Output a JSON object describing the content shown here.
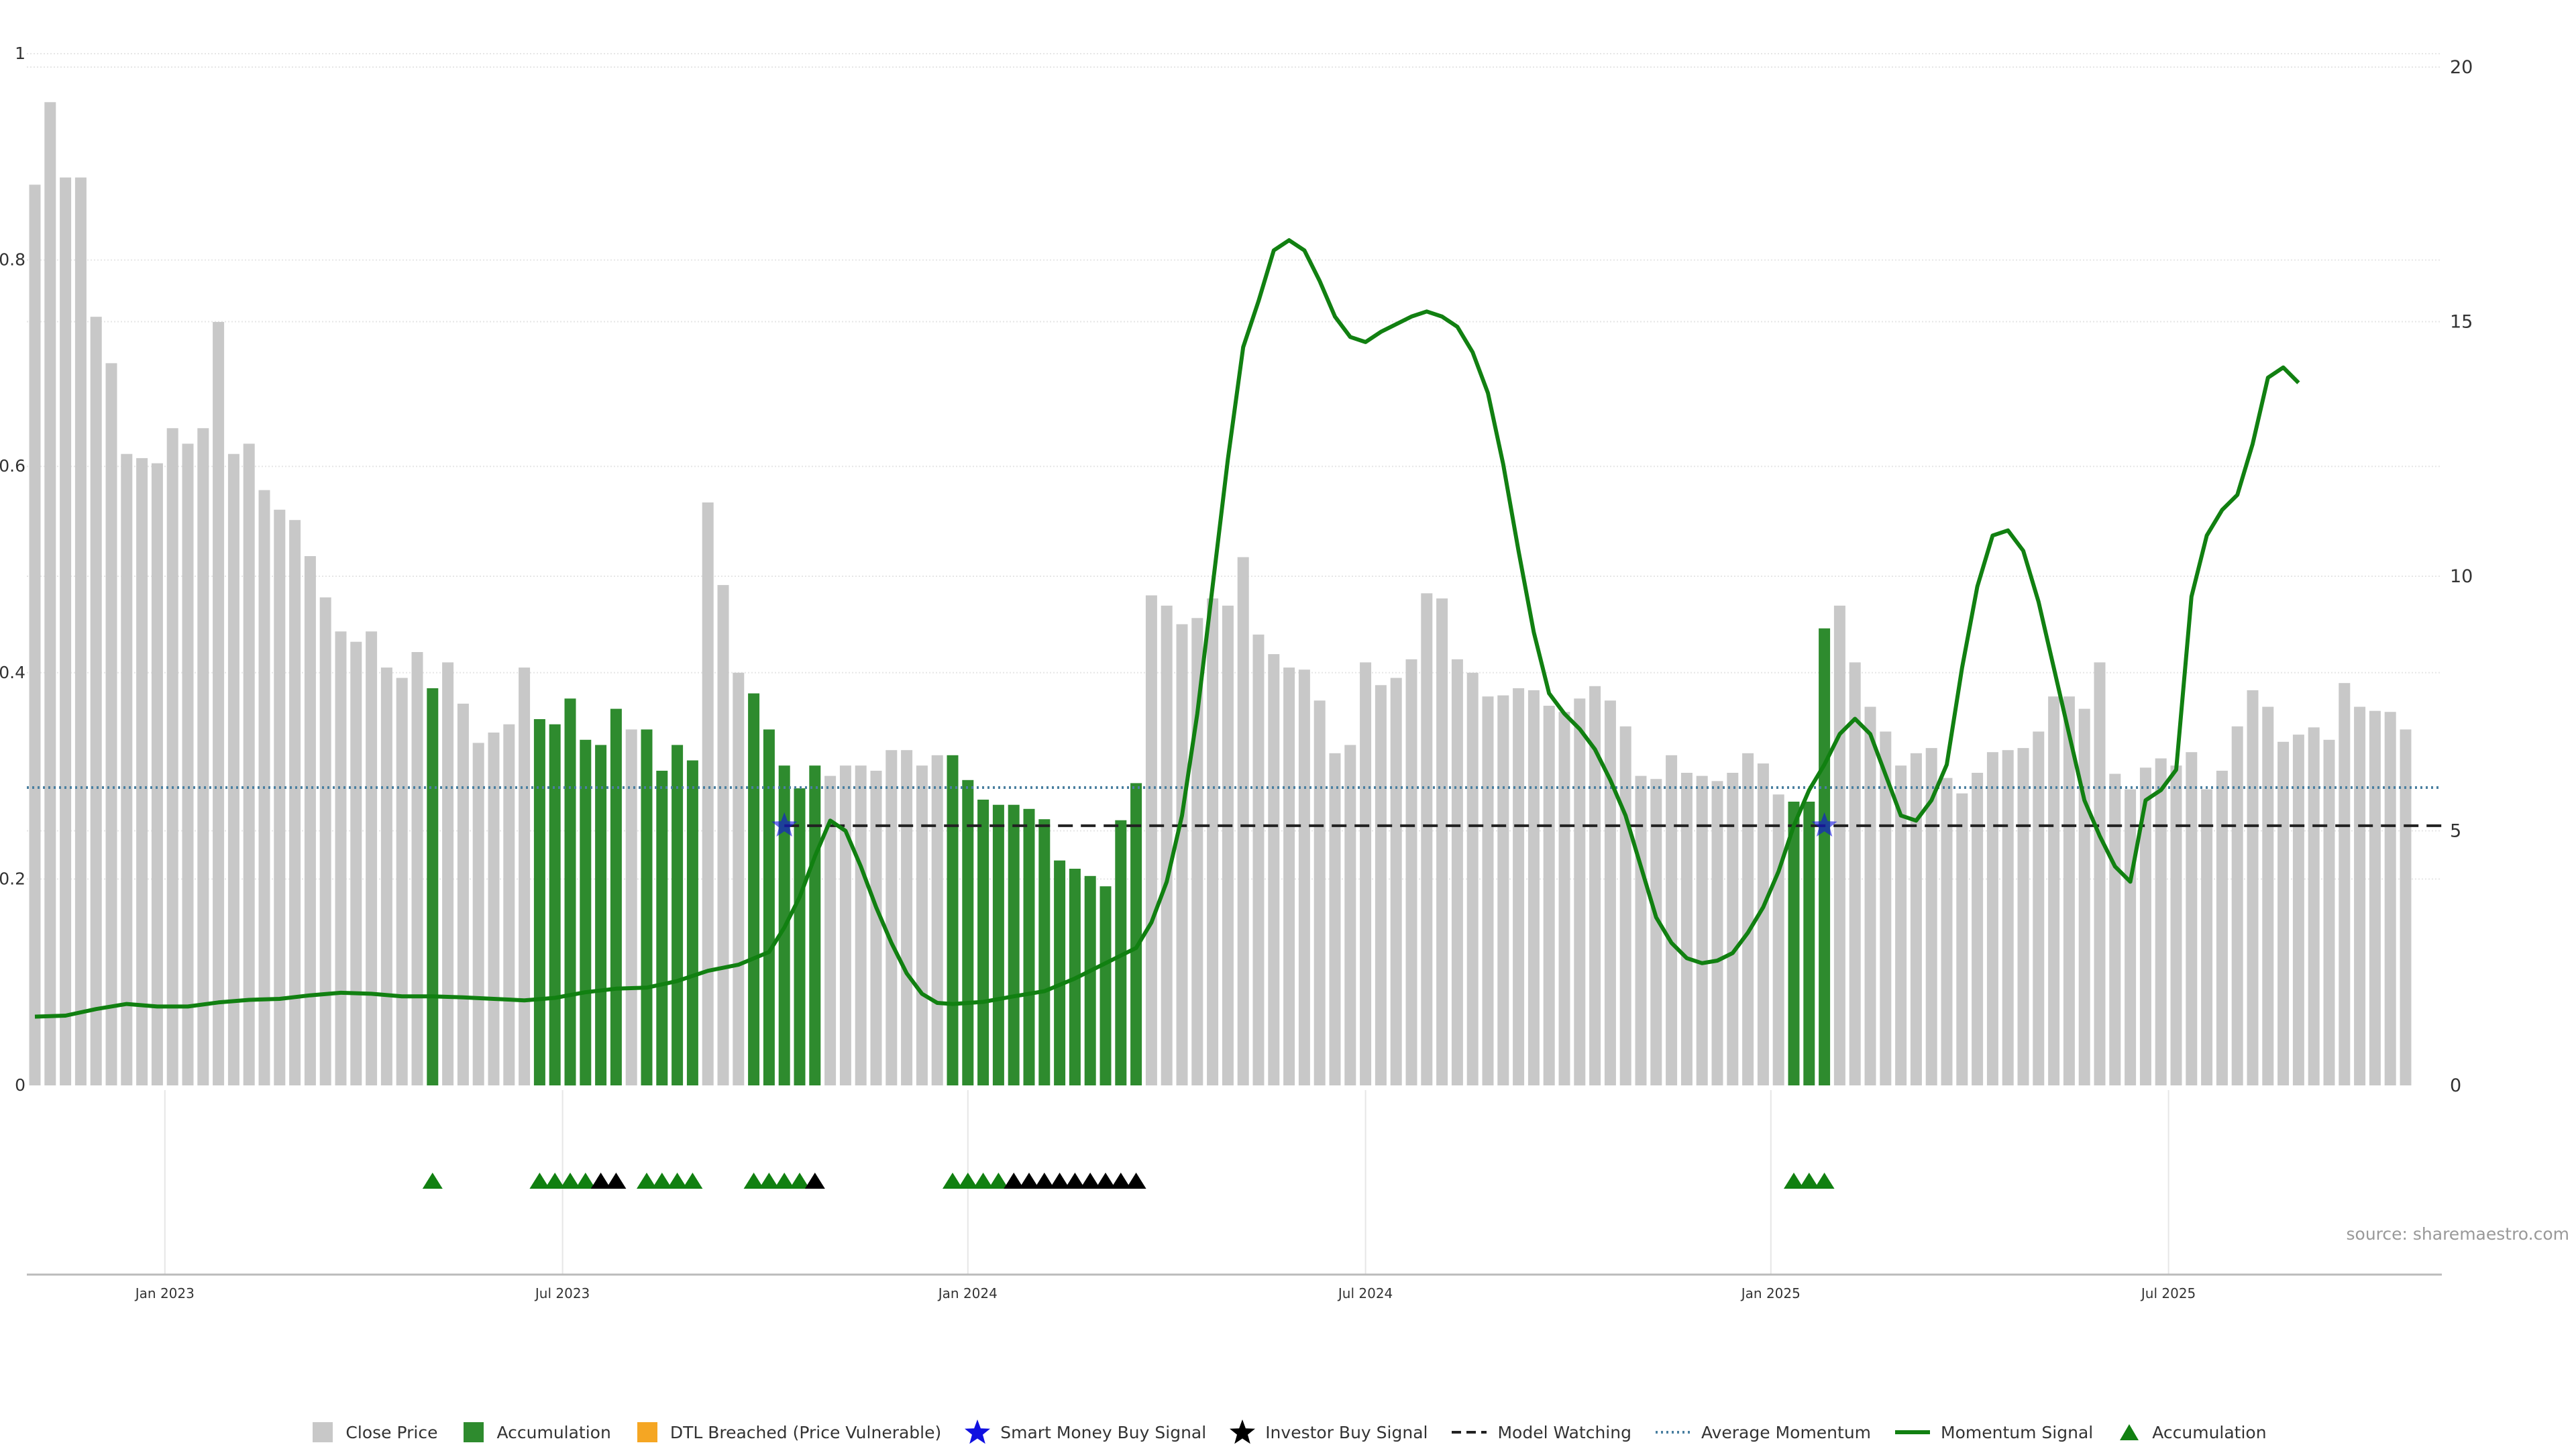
{
  "colors": {
    "close_price": "#c8c8c8",
    "accumulation": "#2e8b2e",
    "dtl_breached": "#f5a623",
    "smart_money": "#1010e0",
    "investor": "#000000",
    "model_watching": "#222222",
    "avg_momentum": "#4a7fa0",
    "momentum": "#118011",
    "accum_marker": "#118011",
    "grid": "#e6e6e6"
  },
  "chart_data": {
    "type": "bar",
    "source": "source: sharemaestro.com",
    "x_ticks": [
      {
        "label": "Jan 2023",
        "index": 8.5
      },
      {
        "label": "Jul 2023",
        "index": 34.5
      },
      {
        "label": "Jan 2024",
        "index": 61
      },
      {
        "label": "Jul 2024",
        "index": 87
      },
      {
        "label": "Jan 2025",
        "index": 113.5
      },
      {
        "label": "Jul 2025",
        "index": 139.5
      }
    ],
    "y_left": {
      "range": [
        0,
        1
      ],
      "ticks": [
        {
          "v": 0,
          "label": "0"
        },
        {
          "v": 0.2,
          "label": "0.2"
        },
        {
          "v": 0.4,
          "label": "0.4"
        },
        {
          "v": 0.6,
          "label": "0.6"
        },
        {
          "v": 0.8,
          "label": "0.8"
        },
        {
          "v": 1,
          "label": "1"
        }
      ]
    },
    "y_right": {
      "range": [
        0,
        20
      ],
      "ticks": [
        {
          "v": 0,
          "label": "0"
        },
        {
          "v": 5,
          "label": "5"
        },
        {
          "v": 10,
          "label": "10"
        },
        {
          "v": 15,
          "label": "15"
        },
        {
          "v": 20,
          "label": "20"
        }
      ]
    },
    "close_price": [
      0.873,
      0.953,
      0.88,
      0.88,
      0.745,
      0.7,
      0.612,
      0.608,
      0.603,
      0.637,
      0.622,
      0.637,
      0.74,
      0.612,
      0.622,
      0.577,
      0.558,
      0.548,
      0.513,
      0.473,
      0.44,
      0.43,
      0.44,
      0.405,
      0.395,
      0.42,
      0.385,
      0.41,
      0.37,
      0.332,
      0.342,
      0.35,
      0.405,
      0.355,
      0.35,
      0.375,
      0.335,
      0.33,
      0.365,
      0.345,
      0.345,
      0.305,
      0.33,
      0.315,
      0.565,
      0.485,
      0.4,
      0.38,
      0.345,
      0.31,
      0.288,
      0.31,
      0.3,
      0.31,
      0.31,
      0.305,
      0.325,
      0.325,
      0.31,
      0.32,
      0.32,
      0.296,
      0.277,
      0.272,
      0.272,
      0.268,
      0.258,
      0.218,
      0.21,
      0.203,
      0.193,
      0.257,
      0.293,
      0.475,
      0.465,
      0.447,
      0.453,
      0.472,
      0.465,
      0.512,
      0.437,
      0.418,
      0.405,
      0.403,
      0.373,
      0.322,
      0.33,
      0.41,
      0.388,
      0.395,
      0.413,
      0.477,
      0.472,
      0.413,
      0.4,
      0.377,
      0.378,
      0.385,
      0.383,
      0.368,
      0.362,
      0.375,
      0.387,
      0.373,
      0.348,
      0.3,
      0.297,
      0.32,
      0.303,
      0.3,
      0.295,
      0.303,
      0.322,
      0.312,
      0.282,
      0.275,
      0.275,
      0.443,
      0.465,
      0.41,
      0.367,
      0.343,
      0.31,
      0.322,
      0.327,
      0.298,
      0.283,
      0.303,
      0.323,
      0.325,
      0.327,
      0.343,
      0.377,
      0.377,
      0.365,
      0.41,
      0.302,
      0.287,
      0.308,
      0.317,
      0.31,
      0.323,
      0.287,
      0.305,
      0.348,
      0.383,
      0.367,
      0.333,
      0.34,
      0.347,
      0.335,
      0.39,
      0.367,
      0.363,
      0.362,
      0.345
    ],
    "accumulation_ranges": [
      [
        26,
        26
      ],
      [
        33,
        38
      ],
      [
        40,
        43
      ],
      [
        47,
        51
      ],
      [
        60,
        72
      ],
      [
        115,
        117
      ]
    ],
    "momentum_signal": [
      [
        0,
        1.35
      ],
      [
        2,
        1.37
      ],
      [
        4,
        1.5
      ],
      [
        6,
        1.6
      ],
      [
        8,
        1.55
      ],
      [
        10,
        1.55
      ],
      [
        12,
        1.63
      ],
      [
        14,
        1.68
      ],
      [
        16,
        1.7
      ],
      [
        18,
        1.77
      ],
      [
        20,
        1.82
      ],
      [
        22,
        1.8
      ],
      [
        24,
        1.75
      ],
      [
        26,
        1.75
      ],
      [
        28,
        1.73
      ],
      [
        30,
        1.7
      ],
      [
        32,
        1.67
      ],
      [
        34,
        1.72
      ],
      [
        36,
        1.83
      ],
      [
        38,
        1.9
      ],
      [
        40,
        1.92
      ],
      [
        42,
        2.05
      ],
      [
        44,
        2.25
      ],
      [
        46,
        2.37
      ],
      [
        48,
        2.62
      ],
      [
        49,
        3.1
      ],
      [
        50,
        3.7
      ],
      [
        51,
        4.5
      ],
      [
        52,
        5.2
      ],
      [
        53,
        5.0
      ],
      [
        54,
        4.3
      ],
      [
        55,
        3.5
      ],
      [
        56,
        2.8
      ],
      [
        57,
        2.2
      ],
      [
        58,
        1.8
      ],
      [
        59,
        1.62
      ],
      [
        60,
        1.6
      ],
      [
        62,
        1.64
      ],
      [
        64,
        1.75
      ],
      [
        66,
        1.85
      ],
      [
        68,
        2.1
      ],
      [
        70,
        2.4
      ],
      [
        72,
        2.7
      ],
      [
        73,
        3.2
      ],
      [
        74,
        4.0
      ],
      [
        75,
        5.3
      ],
      [
        76,
        7.3
      ],
      [
        77,
        9.8
      ],
      [
        78,
        12.3
      ],
      [
        79,
        14.5
      ],
      [
        80,
        15.4
      ],
      [
        81,
        16.4
      ],
      [
        82,
        16.6
      ],
      [
        83,
        16.4
      ],
      [
        84,
        15.8
      ],
      [
        85,
        15.1
      ],
      [
        86,
        14.7
      ],
      [
        87,
        14.6
      ],
      [
        88,
        14.8
      ],
      [
        90,
        15.1
      ],
      [
        91,
        15.2
      ],
      [
        92,
        15.1
      ],
      [
        93,
        14.9
      ],
      [
        94,
        14.4
      ],
      [
        95,
        13.6
      ],
      [
        96,
        12.2
      ],
      [
        97,
        10.5
      ],
      [
        98,
        8.9
      ],
      [
        99,
        7.7
      ],
      [
        100,
        7.3
      ],
      [
        101,
        7.0
      ],
      [
        102,
        6.6
      ],
      [
        103,
        6.0
      ],
      [
        104,
        5.3
      ],
      [
        105,
        4.3
      ],
      [
        106,
        3.3
      ],
      [
        107,
        2.8
      ],
      [
        108,
        2.5
      ],
      [
        109,
        2.4
      ],
      [
        110,
        2.45
      ],
      [
        111,
        2.6
      ],
      [
        112,
        3.0
      ],
      [
        113,
        3.5
      ],
      [
        114,
        4.2
      ],
      [
        115,
        5.1
      ],
      [
        116,
        5.8
      ],
      [
        117,
        6.3
      ],
      [
        118,
        6.9
      ],
      [
        119,
        7.2
      ],
      [
        120,
        6.9
      ],
      [
        121,
        6.1
      ],
      [
        122,
        5.3
      ],
      [
        123,
        5.2
      ],
      [
        124,
        5.6
      ],
      [
        125,
        6.3
      ],
      [
        126,
        8.2
      ],
      [
        127,
        9.8
      ],
      [
        128,
        10.8
      ],
      [
        129,
        10.9
      ],
      [
        130,
        10.5
      ],
      [
        131,
        9.5
      ],
      [
        132,
        8.2
      ],
      [
        133,
        6.9
      ],
      [
        134,
        5.6
      ],
      [
        135,
        4.9
      ],
      [
        136,
        4.3
      ],
      [
        137,
        4.0
      ],
      [
        138,
        5.6
      ],
      [
        139,
        5.8
      ],
      [
        140,
        6.2
      ],
      [
        141,
        9.6
      ],
      [
        142,
        10.8
      ],
      [
        143,
        11.3
      ],
      [
        144,
        11.6
      ],
      [
        145,
        12.6
      ],
      [
        146,
        13.9
      ],
      [
        147,
        14.1
      ],
      [
        148,
        13.8
      ]
    ],
    "average_momentum": 5.85,
    "model_watching": 5.1,
    "model_watching_start": 49,
    "smart_money_signals": [
      [
        49,
        5.1
      ],
      [
        117,
        5.1
      ]
    ],
    "signal_markers": [
      {
        "i": 26,
        "type": "accumulation"
      },
      {
        "i": 33,
        "type": "accumulation"
      },
      {
        "i": 34,
        "type": "accumulation"
      },
      {
        "i": 35,
        "type": "accumulation"
      },
      {
        "i": 36,
        "type": "accumulation"
      },
      {
        "i": 37,
        "type": "investor"
      },
      {
        "i": 38,
        "type": "investor"
      },
      {
        "i": 40,
        "type": "accumulation"
      },
      {
        "i": 41,
        "type": "accumulation"
      },
      {
        "i": 42,
        "type": "accumulation"
      },
      {
        "i": 43,
        "type": "accumulation"
      },
      {
        "i": 47,
        "type": "accumulation"
      },
      {
        "i": 48,
        "type": "accumulation"
      },
      {
        "i": 49,
        "type": "accumulation"
      },
      {
        "i": 50,
        "type": "accumulation"
      },
      {
        "i": 51,
        "type": "investor"
      },
      {
        "i": 60,
        "type": "accumulation"
      },
      {
        "i": 61,
        "type": "accumulation"
      },
      {
        "i": 62,
        "type": "accumulation"
      },
      {
        "i": 63,
        "type": "accumulation"
      },
      {
        "i": 64,
        "type": "investor"
      },
      {
        "i": 65,
        "type": "investor"
      },
      {
        "i": 66,
        "type": "investor"
      },
      {
        "i": 67,
        "type": "investor"
      },
      {
        "i": 68,
        "type": "investor"
      },
      {
        "i": 69,
        "type": "investor"
      },
      {
        "i": 70,
        "type": "investor"
      },
      {
        "i": 71,
        "type": "investor"
      },
      {
        "i": 72,
        "type": "investor"
      },
      {
        "i": 115,
        "type": "accumulation"
      },
      {
        "i": 116,
        "type": "accumulation"
      },
      {
        "i": 117,
        "type": "accumulation"
      }
    ]
  },
  "legend": [
    {
      "key": "close_price",
      "label": "Close Price",
      "shape": "square"
    },
    {
      "key": "accumulation",
      "label": "Accumulation",
      "shape": "square"
    },
    {
      "key": "dtl_breached",
      "label": "DTL Breached (Price Vulnerable)",
      "shape": "square"
    },
    {
      "key": "smart_money",
      "label": "Smart Money Buy Signal",
      "shape": "star"
    },
    {
      "key": "investor",
      "label": "Investor Buy Signal",
      "shape": "star"
    },
    {
      "key": "model_watching",
      "label": "Model Watching",
      "shape": "dash"
    },
    {
      "key": "avg_momentum",
      "label": "Average Momentum",
      "shape": "dot"
    },
    {
      "key": "momentum",
      "label": "Momentum Signal",
      "shape": "line"
    },
    {
      "key": "accum_marker",
      "label": "Accumulation",
      "shape": "triangle"
    }
  ]
}
